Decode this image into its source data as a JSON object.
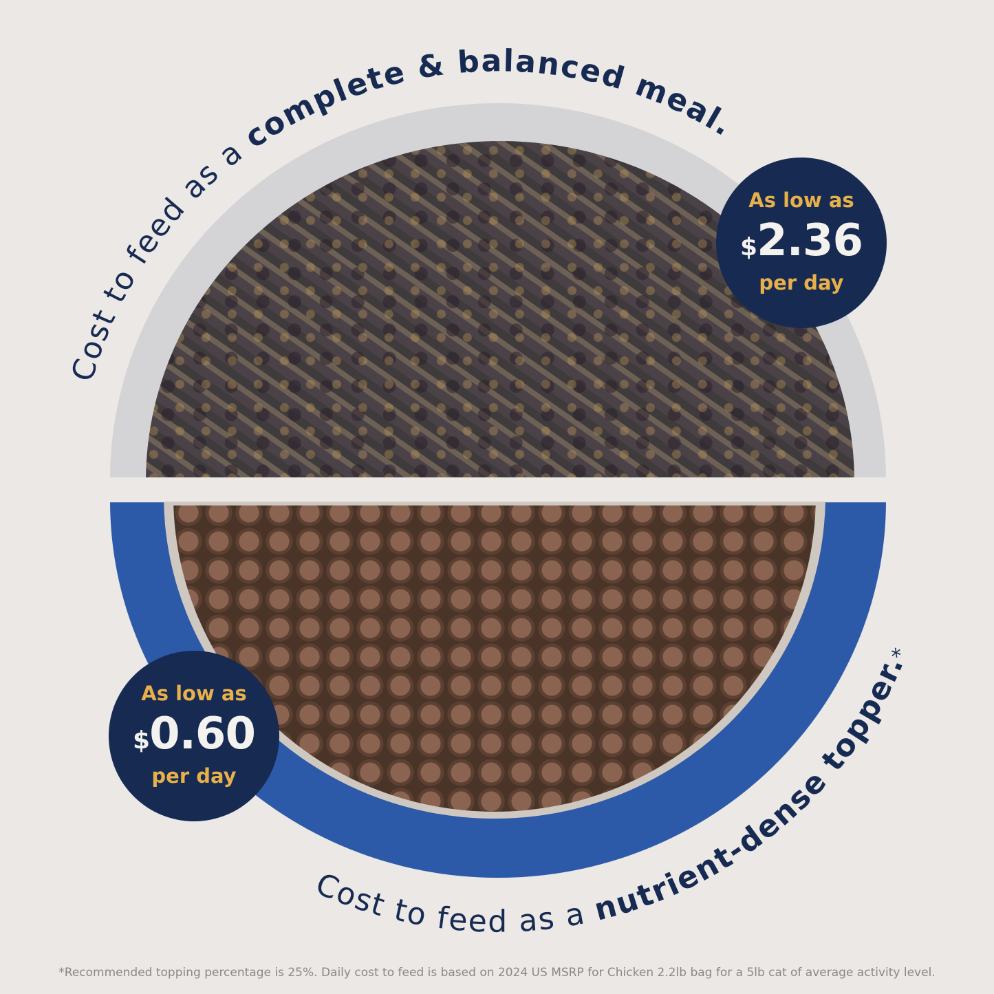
{
  "headline_top": {
    "regular": "Cost to feed as a ",
    "bold": "complete & balanced meal."
  },
  "headline_bottom": {
    "regular": "Cost to feed as a ",
    "bold": "nutrient-dense topper.",
    "asterisk": "*"
  },
  "badge_meal": {
    "line1": "As low as",
    "currency": "$",
    "amount": "2.36",
    "line3": "per day"
  },
  "badge_topper": {
    "line1": "As low as",
    "currency": "$",
    "amount": "0.60",
    "line3": "per day"
  },
  "footnote": "*Recommended topping percentage is 25%. Daily cost to feed is based on 2024 US MSRP for Chicken 2.2lb bag for a 5lb cat of average activity level.",
  "colors": {
    "navy": "#162a52",
    "gold": "#e7b04a",
    "blue_bowl": "#2d5aa8",
    "background": "#ebe8e5"
  }
}
